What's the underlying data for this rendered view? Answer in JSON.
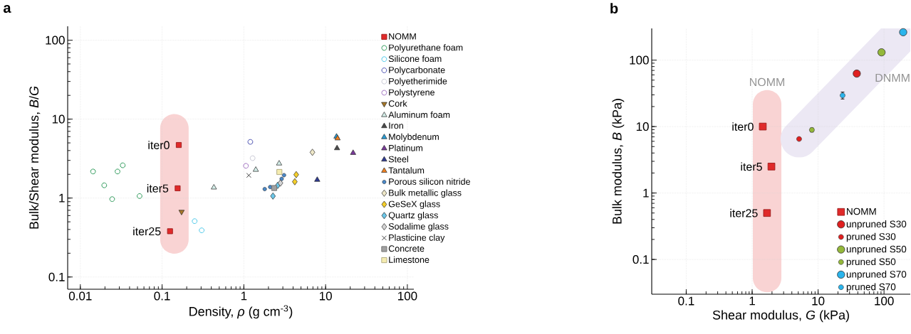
{
  "chart_data": [
    {
      "type": "scatter",
      "title": "a",
      "xlabel": "Density, *ρ* (g cm$^{-3}$)",
      "ylabel": "Bulk/Shear modulus, *B*/*G*",
      "log": "xy",
      "grid": true,
      "legend": "right",
      "xlim": [
        0.007,
        120
      ],
      "ylim": [
        0.07,
        150
      ],
      "xticks": [
        0.01,
        0.1,
        1,
        10,
        100
      ],
      "yticks": [
        0.1,
        1,
        10,
        100
      ],
      "annotations": [
        {
          "text": "iter0",
          "x": 0.16,
          "y": 4.7
        },
        {
          "text": "iter5",
          "x": 0.155,
          "y": 1.33
        },
        {
          "text": "iter25",
          "x": 0.125,
          "y": 0.38
        }
      ],
      "series": [
        {
          "name": "NOMM",
          "color": "#e02a2a",
          "marker": "square",
          "x": [
            0.16,
            0.155,
            0.125
          ],
          "values": [
            4.7,
            1.33,
            0.38
          ]
        },
        {
          "name": "Polyurethane foam",
          "color": "#2e9a5a",
          "marker": "open circle",
          "x": [
            0.0143,
            0.0196,
            0.0245,
            0.0285,
            0.033,
            0.053
          ],
          "values": [
            2.17,
            1.45,
            0.97,
            2.17,
            2.6,
            1.06
          ]
        },
        {
          "name": "Silicone foam",
          "color": "#4cc8e8",
          "marker": "open circle",
          "x": [
            0.25,
            0.305
          ],
          "values": [
            0.51,
            0.39
          ]
        },
        {
          "name": "Polycarbonate",
          "color": "#4a50b0",
          "marker": "open circle",
          "x": [
            1.2
          ],
          "values": [
            5.15
          ]
        },
        {
          "name": "Polyetherimide",
          "color": "#c8c8d4",
          "marker": "open circle",
          "x": [
            1.28
          ],
          "values": [
            3.2
          ]
        },
        {
          "name": "Polystyrene",
          "color": "#a070c0",
          "marker": "open circle",
          "x": [
            1.06
          ],
          "values": [
            2.56
          ]
        },
        {
          "name": "Cork",
          "color": "#a87828",
          "marker": "triangle down",
          "x": [
            0.173
          ],
          "values": [
            0.67
          ]
        },
        {
          "name": "Aluminum foam",
          "color": "#d4eee9",
          "marker": "triangle",
          "x": [
            0.43,
            1.4,
            2.7
          ],
          "values": [
            1.36,
            2.28,
            2.74
          ]
        },
        {
          "name": "Iron",
          "color": "#4a4a4a",
          "marker": "triangle",
          "x": [
            13.8
          ],
          "values": [
            4.28
          ]
        },
        {
          "name": "Molybdenum",
          "color": "#2a9ed8",
          "marker": "triangle",
          "x": [
            13.6
          ],
          "values": [
            6.0
          ]
        },
        {
          "name": "Platinum",
          "color": "#7a3a9a",
          "marker": "triangle",
          "x": [
            21.7
          ],
          "values": [
            3.73
          ]
        },
        {
          "name": "Steel",
          "color": "#2e3a92",
          "marker": "triangle",
          "x": [
            7.9
          ],
          "values": [
            1.7
          ]
        },
        {
          "name": "Tantalum",
          "color": "#f08020",
          "marker": "triangle",
          "x": [
            14
          ],
          "values": [
            5.7
          ]
        },
        {
          "name": "Porous silicon nitride",
          "color": "#4a88c8",
          "marker": "small circle",
          "x": [
            1.8,
            2.1,
            2.9,
            3.1
          ],
          "values": [
            1.3,
            1.38,
            1.75,
            1.95
          ]
        },
        {
          "name": "Bulk metallic glass",
          "color": "#efe8c8",
          "marker": "diamond",
          "x": [
            6.9
          ],
          "values": [
            3.8
          ]
        },
        {
          "name": "GeSeX glass",
          "color": "#f5cf2a",
          "marker": "diamond",
          "x": [
            4.37,
            4.2
          ],
          "values": [
            1.98,
            1.61
          ]
        },
        {
          "name": "Quartz glass",
          "color": "#6cc8ea",
          "marker": "diamond",
          "x": [
            2.27,
            2.6
          ],
          "values": [
            1.06,
            1.45
          ]
        },
        {
          "name": "Sodalime glass",
          "color": "#d4d4d4",
          "marker": "diamond",
          "x": [
            2.8
          ],
          "values": [
            1.55
          ]
        },
        {
          "name": "Plasticine clay",
          "color": "#303030",
          "marker": "cross",
          "x": [
            1.15
          ],
          "values": [
            1.94
          ]
        },
        {
          "name": "Concrete",
          "color": "#a0a0a0",
          "marker": "square",
          "x": [
            2.35
          ],
          "values": [
            1.34
          ]
        },
        {
          "name": "Limestone",
          "color": "#f5ecb0",
          "marker": "square",
          "x": [
            2.72
          ],
          "values": [
            2.14
          ]
        }
      ]
    },
    {
      "type": "scatter",
      "title": "b",
      "xlabel": "Shear modulus, *G* (kPa)",
      "ylabel": "Bulk modulus, *B* (kPa)",
      "log": "xy",
      "grid": true,
      "legend": "bottom right",
      "xlim": [
        0.03,
        250
      ],
      "ylim": [
        0.03,
        300
      ],
      "xticks": [
        0.1,
        1,
        10,
        100
      ],
      "yticks": [
        0.1,
        1,
        10,
        100
      ],
      "annotations": [
        "NOMM",
        "DNMM",
        {
          "text": "iter0",
          "x": 1.45,
          "y": 10
        },
        {
          "text": "iter5",
          "x": 1.96,
          "y": 2.5
        },
        {
          "text": "iter25",
          "x": 1.68,
          "y": 0.5
        }
      ],
      "series": [
        {
          "name": "NOMM",
          "color": "#e02a2a",
          "marker": "square",
          "x": [
            1.45,
            1.96,
            1.68
          ],
          "values": [
            10,
            2.5,
            0.5
          ]
        },
        {
          "name": "unpruned S30",
          "color": "#e02020",
          "marker": "circle",
          "x": [
            38.6
          ],
          "values": [
            62.7
          ]
        },
        {
          "name": "pruned S30",
          "color": "#e02020",
          "marker": "small circle",
          "x": [
            5.15
          ],
          "values": [
            6.5
          ]
        },
        {
          "name": "unpruned S50",
          "color": "#94b83a",
          "marker": "circle",
          "x": [
            91.6
          ],
          "values": [
            131
          ]
        },
        {
          "name": "pruned S50",
          "color": "#94b83a",
          "marker": "small circle",
          "x": [
            8.05
          ],
          "values": [
            8.9
          ],
          "errors": [
            [
              8.3,
              9.5
            ]
          ]
        },
        {
          "name": "unpruned S70",
          "color": "#2ab4ec",
          "marker": "circle",
          "x": [
            195
          ],
          "values": [
            263
          ]
        },
        {
          "name": "pruned S70",
          "color": "#2ab4ec",
          "marker": "small circle",
          "x": [
            23.5
          ],
          "values": [
            29.4
          ],
          "errors": [
            [
              26,
              33
            ]
          ]
        }
      ]
    }
  ]
}
